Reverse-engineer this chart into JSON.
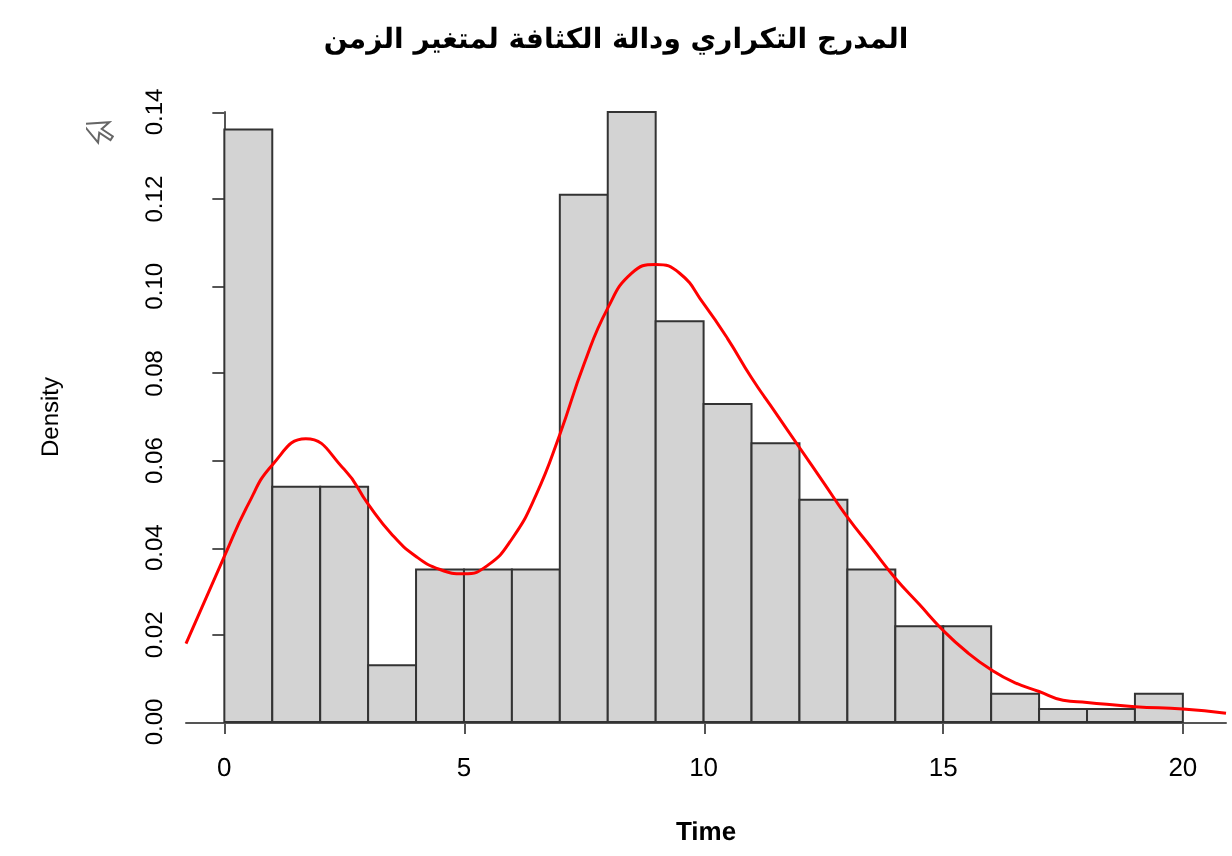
{
  "chart_data": {
    "type": "histogram",
    "title": "المدرج التكراري ودالة الكثافة لمتغير الزمن",
    "xlabel": "Time",
    "ylabel": "Density",
    "bins": [
      0,
      1,
      2,
      3,
      4,
      5,
      6,
      7,
      8,
      9,
      10,
      11,
      12,
      13,
      14,
      15,
      16,
      17,
      18,
      19,
      20
    ],
    "values": [
      0.136,
      0.054,
      0.054,
      0.013,
      0.035,
      0.035,
      0.035,
      0.121,
      0.14,
      0.092,
      0.073,
      0.064,
      0.051,
      0.035,
      0.022,
      0.022,
      0.0065,
      0.003,
      0.003,
      0.0065
    ],
    "color": "#d3d3d3",
    "series": [
      {
        "type": "line",
        "color": "#ff0000",
        "x": [
          -0.8,
          0,
          0.5,
          1,
          1.7,
          2.5,
          3,
          3.5,
          4,
          4.5,
          5,
          5.5,
          6,
          6.5,
          7,
          7.5,
          8,
          8.5,
          9,
          9.5,
          10,
          10.5,
          11,
          11.5,
          12,
          12.5,
          13,
          13.5,
          14,
          14.5,
          15,
          15.5,
          16,
          16.5,
          17,
          17.5,
          18,
          19,
          20,
          20.9
        ],
        "values": [
          0.018,
          0.038,
          0.05,
          0.059,
          0.065,
          0.058,
          0.05,
          0.043,
          0.038,
          0.035,
          0.034,
          0.036,
          0.042,
          0.052,
          0.066,
          0.082,
          0.095,
          0.103,
          0.105,
          0.103,
          0.096,
          0.088,
          0.079,
          0.071,
          0.063,
          0.055,
          0.047,
          0.04,
          0.033,
          0.027,
          0.021,
          0.016,
          0.012,
          0.009,
          0.007,
          0.005,
          0.0045,
          0.0035,
          0.003,
          0.002
        ]
      }
    ],
    "xlim": [
      -0.8,
      20.9
    ],
    "xticks": [
      0,
      5,
      10,
      15,
      20
    ],
    "ylim": [
      0,
      0.14
    ],
    "yticks": [
      {
        "value": 0,
        "label": "0.00"
      },
      {
        "value": 0.02,
        "label": "0.02"
      },
      {
        "value": 0.04,
        "label": "0.04"
      },
      {
        "value": 0.06,
        "label": "0.06"
      },
      {
        "value": 0.08,
        "label": "0.08"
      },
      {
        "value": 0.1,
        "label": "0.10"
      },
      {
        "value": 0.12,
        "label": "0.12"
      },
      {
        "value": 0.14,
        "label": "0.14"
      }
    ],
    "grid": false,
    "marker": "none",
    "line_style": "solid"
  }
}
